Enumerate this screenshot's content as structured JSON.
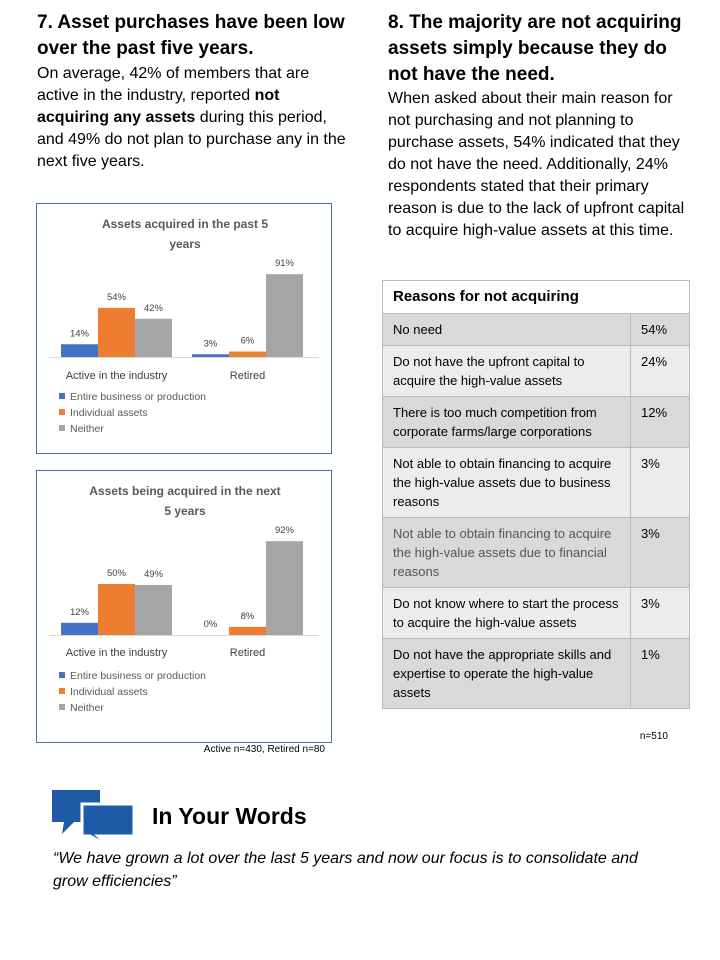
{
  "left": {
    "title": "7. Asset purchases have been low over the past five years.",
    "para_1": "On average, 42% of members that are active in the industry, reported ",
    "para_bold": "not acquiring any assets",
    "para_2": " during this period, and 49% do not plan to purchase any in the next five years."
  },
  "right": {
    "title": "8. The majority are not acquiring assets simply because they do not have the need.",
    "para": "When asked about their main reason for not purchasing and not planning to purchase assets, 54% indicated that they do not have the need. Additionally, 24% respondents stated that their primary reason is due to the lack of upfront capital to acquire high-value assets at this time."
  },
  "colors": {
    "entire": "#4472c4",
    "individual": "#ed7d31",
    "neither": "#a5a5a5",
    "border": "#4a6f9a"
  },
  "chart_data": [
    {
      "type": "bar",
      "title": "Assets acquired in the past 5 years",
      "categories": [
        "Active in the industry",
        "Retired"
      ],
      "series": [
        {
          "name": "Entire business or production",
          "values": [
            14,
            3
          ],
          "labels": [
            "14%",
            "3%"
          ]
        },
        {
          "name": "Individual assets",
          "values": [
            54,
            6
          ],
          "labels": [
            "54%",
            "6%"
          ]
        },
        {
          "name": "Neither",
          "values": [
            42,
            91
          ],
          "labels": [
            "42%",
            "91%"
          ]
        }
      ],
      "ylim": [
        0,
        100
      ],
      "grid": false,
      "legend": "bottom-left"
    },
    {
      "type": "bar",
      "title": "Assets being acquired in the next 5 years",
      "categories": [
        "Active in the industry",
        "Retired"
      ],
      "series": [
        {
          "name": "Entire business or production",
          "values": [
            12,
            0
          ],
          "labels": [
            "12%",
            "0%"
          ]
        },
        {
          "name": "Individual assets",
          "values": [
            50,
            8
          ],
          "labels": [
            "50%",
            "8%"
          ]
        },
        {
          "name": "Neither",
          "values": [
            49,
            92
          ],
          "labels": [
            "49%",
            "92%"
          ]
        }
      ],
      "ylim": [
        0,
        100
      ],
      "grid": false,
      "legend": "bottom-left"
    }
  ],
  "chart_footnote": "Active n=430, Retired n=80",
  "table": {
    "header": "Reasons for not acquiring",
    "rows": [
      {
        "reason": "No need",
        "pct": "54%"
      },
      {
        "reason": "Do not have the upfront capital to acquire the high-value assets",
        "pct": "24%"
      },
      {
        "reason": "There is too much competition from corporate farms/large corporations",
        "pct": "12%"
      },
      {
        "reason": "Not able to obtain financing to acquire the high-value assets due to business reasons",
        "pct": "3%"
      },
      {
        "reason": "Not able to obtain financing to acquire the high-value assets due to financial reasons",
        "pct": "3%"
      },
      {
        "reason": "Do not know where to start the process to acquire the high-value assets",
        "pct": "3%"
      },
      {
        "reason": "Do not have the appropriate skills and expertise to operate the high-value assets",
        "pct": "1%"
      }
    ],
    "footnote": "n=510"
  },
  "words": {
    "icon": "speech-bubbles-icon",
    "title": "In Your Words",
    "quote": "“We have grown a lot over the last 5 years and now our focus is to consolidate and grow efficiencies”"
  }
}
